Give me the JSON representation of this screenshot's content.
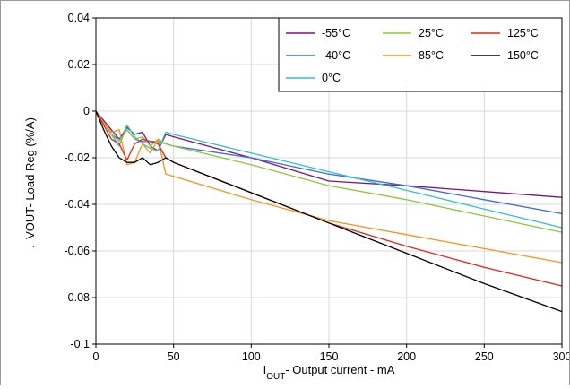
{
  "chart_data": {
    "type": "line",
    "title": "",
    "xlabel": {
      "main": "I",
      "sub": "OUT",
      "rest": "- Output current - mA"
    },
    "ylabel": "VOUT- Load Reg (%/A)",
    "ylabel_prefix": ".",
    "xlim": [
      0,
      300
    ],
    "ylim": [
      -0.1,
      0.04
    ],
    "xticks": [
      0,
      50,
      100,
      150,
      200,
      250,
      300
    ],
    "xtick_labels": [
      "0",
      "50",
      "100",
      "150",
      "200",
      "250",
      "300"
    ],
    "yticks": [
      -0.1,
      -0.08,
      -0.06,
      -0.04,
      -0.02,
      0,
      0.02,
      0.04
    ],
    "ytick_labels": [
      "-0.1",
      "-0.08",
      "-0.06",
      "-0.04",
      "-0.02",
      "0",
      "0.02",
      "0.04"
    ],
    "grid": true,
    "legend_position": "top-right",
    "series": [
      {
        "name": "-55°C",
        "color": "#7b137e",
        "points": [
          [
            0,
            0
          ],
          [
            5,
            -0.004
          ],
          [
            10,
            -0.008
          ],
          [
            15,
            -0.012
          ],
          [
            20,
            -0.007
          ],
          [
            25,
            -0.01
          ],
          [
            30,
            -0.009
          ],
          [
            35,
            -0.015
          ],
          [
            40,
            -0.017
          ],
          [
            45,
            -0.01
          ],
          [
            50,
            -0.011
          ],
          [
            100,
            -0.02
          ],
          [
            150,
            -0.03
          ],
          [
            200,
            -0.032
          ],
          [
            250,
            -0.0345
          ],
          [
            300,
            -0.037
          ]
        ]
      },
      {
        "name": "-40°C",
        "color": "#3e6ae0",
        "points": [
          [
            0,
            0
          ],
          [
            5,
            -0.005
          ],
          [
            10,
            -0.01
          ],
          [
            15,
            -0.012
          ],
          [
            20,
            -0.008
          ],
          [
            25,
            -0.012
          ],
          [
            30,
            -0.013
          ],
          [
            35,
            -0.013
          ],
          [
            40,
            -0.013
          ],
          [
            45,
            -0.014
          ],
          [
            50,
            -0.015
          ],
          [
            100,
            -0.02
          ],
          [
            150,
            -0.027
          ],
          [
            200,
            -0.032
          ],
          [
            250,
            -0.038
          ],
          [
            300,
            -0.044
          ]
        ]
      },
      {
        "name": "0°C",
        "color": "#33c2c2",
        "points": [
          [
            0,
            0
          ],
          [
            5,
            -0.005
          ],
          [
            10,
            -0.01
          ],
          [
            15,
            -0.015
          ],
          [
            20,
            -0.006
          ],
          [
            25,
            -0.011
          ],
          [
            30,
            -0.014
          ],
          [
            35,
            -0.016
          ],
          [
            40,
            -0.017
          ],
          [
            45,
            -0.009
          ],
          [
            50,
            -0.01
          ],
          [
            100,
            -0.018
          ],
          [
            150,
            -0.026
          ],
          [
            200,
            -0.034
          ],
          [
            250,
            -0.042
          ],
          [
            300,
            -0.05
          ]
        ]
      },
      {
        "name": "25°C",
        "color": "#8dc63f",
        "points": [
          [
            0,
            0
          ],
          [
            5,
            -0.005
          ],
          [
            10,
            -0.01
          ],
          [
            15,
            -0.013
          ],
          [
            20,
            -0.008
          ],
          [
            25,
            -0.012
          ],
          [
            30,
            -0.011
          ],
          [
            35,
            -0.015
          ],
          [
            40,
            -0.012
          ],
          [
            45,
            -0.014
          ],
          [
            50,
            -0.015
          ],
          [
            100,
            -0.023
          ],
          [
            150,
            -0.032
          ],
          [
            200,
            -0.038
          ],
          [
            250,
            -0.045
          ],
          [
            300,
            -0.052
          ]
        ]
      },
      {
        "name": "85°C",
        "color": "#f7941d",
        "points": [
          [
            0,
            0
          ],
          [
            5,
            -0.005
          ],
          [
            10,
            -0.009
          ],
          [
            15,
            -0.008
          ],
          [
            20,
            -0.023
          ],
          [
            25,
            -0.022
          ],
          [
            30,
            -0.014
          ],
          [
            35,
            -0.018
          ],
          [
            40,
            -0.012
          ],
          [
            45,
            -0.027
          ],
          [
            50,
            -0.028
          ],
          [
            100,
            -0.038
          ],
          [
            150,
            -0.047
          ],
          [
            200,
            -0.053
          ],
          [
            250,
            -0.059
          ],
          [
            300,
            -0.065
          ]
        ]
      },
      {
        "name": "125°C",
        "color": "#e2231a",
        "points": [
          [
            0,
            0
          ],
          [
            5,
            -0.006
          ],
          [
            10,
            -0.012
          ],
          [
            15,
            -0.014
          ],
          [
            20,
            -0.021
          ],
          [
            25,
            -0.014
          ],
          [
            30,
            -0.012
          ],
          [
            35,
            -0.013
          ],
          [
            40,
            -0.014
          ],
          [
            45,
            -0.02
          ],
          [
            50,
            -0.022
          ],
          [
            100,
            -0.035
          ],
          [
            150,
            -0.048
          ],
          [
            200,
            -0.058
          ],
          [
            250,
            -0.067
          ],
          [
            300,
            -0.075
          ]
        ]
      },
      {
        "name": "150°C",
        "color": "#000000",
        "points": [
          [
            0,
            0
          ],
          [
            5,
            -0.008
          ],
          [
            10,
            -0.015
          ],
          [
            15,
            -0.02
          ],
          [
            20,
            -0.022
          ],
          [
            25,
            -0.022
          ],
          [
            30,
            -0.02
          ],
          [
            35,
            -0.023
          ],
          [
            40,
            -0.022
          ],
          [
            45,
            -0.02
          ],
          [
            50,
            -0.022
          ],
          [
            100,
            -0.035
          ],
          [
            150,
            -0.048
          ],
          [
            200,
            -0.061
          ],
          [
            250,
            -0.074
          ],
          [
            300,
            -0.086
          ]
        ]
      }
    ]
  }
}
